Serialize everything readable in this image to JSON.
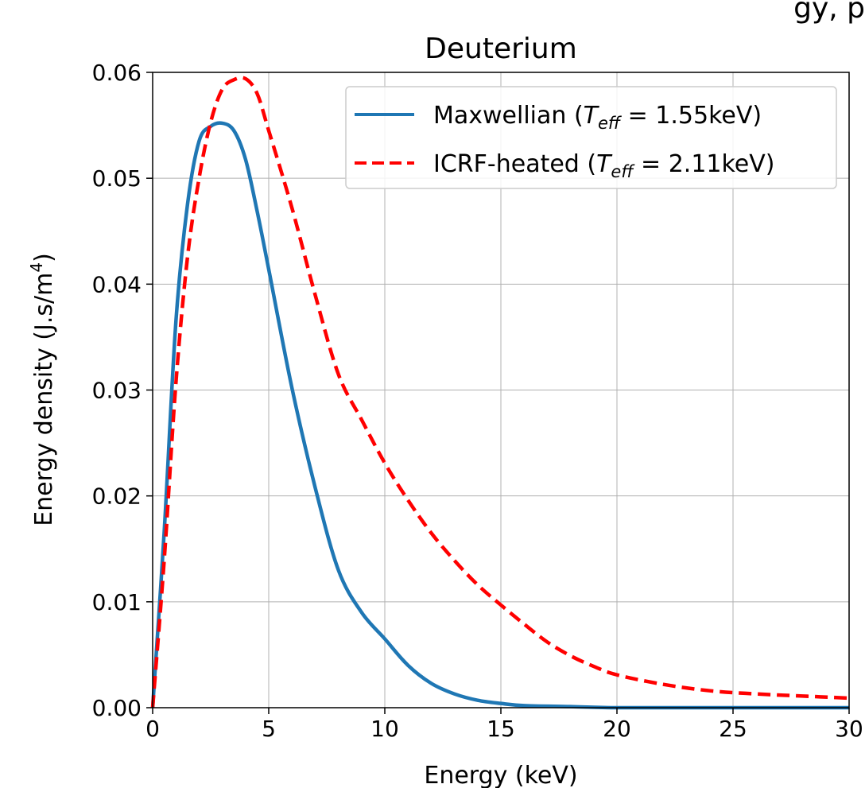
{
  "clipped_text": "gy, p",
  "chart_data": {
    "type": "line",
    "title": "Deuterium",
    "xlabel": "Energy (keV)",
    "ylabel": {
      "prefix": "Energy density (J.s/m",
      "sup": "4",
      "suffix": ")"
    },
    "xlim": [
      0,
      30
    ],
    "ylim": [
      0,
      0.06
    ],
    "xticks": [
      0,
      5,
      10,
      15,
      20,
      25,
      30
    ],
    "xtick_labels": [
      "0",
      "5",
      "10",
      "15",
      "20",
      "25",
      "30"
    ],
    "yticks": [
      0,
      0.01,
      0.02,
      0.03,
      0.04,
      0.05,
      0.06
    ],
    "ytick_labels": [
      "0.00",
      "0.01",
      "0.02",
      "0.03",
      "0.04",
      "0.05",
      "0.06"
    ],
    "grid": true,
    "legend_position": "top-right",
    "series": [
      {
        "name": "Maxwellian",
        "legend": {
          "prefix": "Maxwellian (",
          "T": "T",
          "sub": "eff",
          "suffix": " = 1.55keV)"
        },
        "color": "#1f77b4",
        "linestyle": "solid",
        "x": [
          0,
          0.5,
          1,
          1.5,
          2,
          2.5,
          3,
          3.5,
          4,
          4.5,
          5,
          6,
          7,
          8,
          9,
          10,
          11,
          12,
          13,
          14,
          15,
          16,
          18,
          20,
          25,
          30
        ],
        "y": [
          0,
          0.0167,
          0.0364,
          0.0475,
          0.0535,
          0.0549,
          0.0552,
          0.0545,
          0.0518,
          0.0469,
          0.0414,
          0.0302,
          0.0208,
          0.013,
          0.009,
          0.0065,
          0.004,
          0.0023,
          0.0013,
          0.0007,
          0.0004,
          0.0002,
          0.0001,
          0,
          0,
          0
        ]
      },
      {
        "name": "ICRF-heated",
        "legend": {
          "prefix": "ICRF-heated (",
          "T": "T",
          "sub": "eff",
          "suffix": " = 2.11keV)"
        },
        "color": "#ff0000",
        "linestyle": "dashed",
        "x": [
          0,
          0.5,
          1,
          1.5,
          2,
          2.5,
          3,
          3.5,
          4,
          4.5,
          5,
          6,
          7,
          8,
          9,
          10,
          11,
          12,
          13,
          14,
          15,
          16,
          17,
          18,
          19,
          20,
          22,
          24,
          26,
          28,
          30
        ],
        "y": [
          0,
          0.014,
          0.0306,
          0.0425,
          0.05,
          0.0553,
          0.0584,
          0.0593,
          0.0594,
          0.058,
          0.0545,
          0.0472,
          0.039,
          0.0315,
          0.0272,
          0.0231,
          0.0196,
          0.0165,
          0.0139,
          0.0116,
          0.0097,
          0.0079,
          0.0062,
          0.0049,
          0.0039,
          0.0031,
          0.0022,
          0.0016,
          0.0013,
          0.0011,
          0.0009
        ]
      }
    ]
  }
}
